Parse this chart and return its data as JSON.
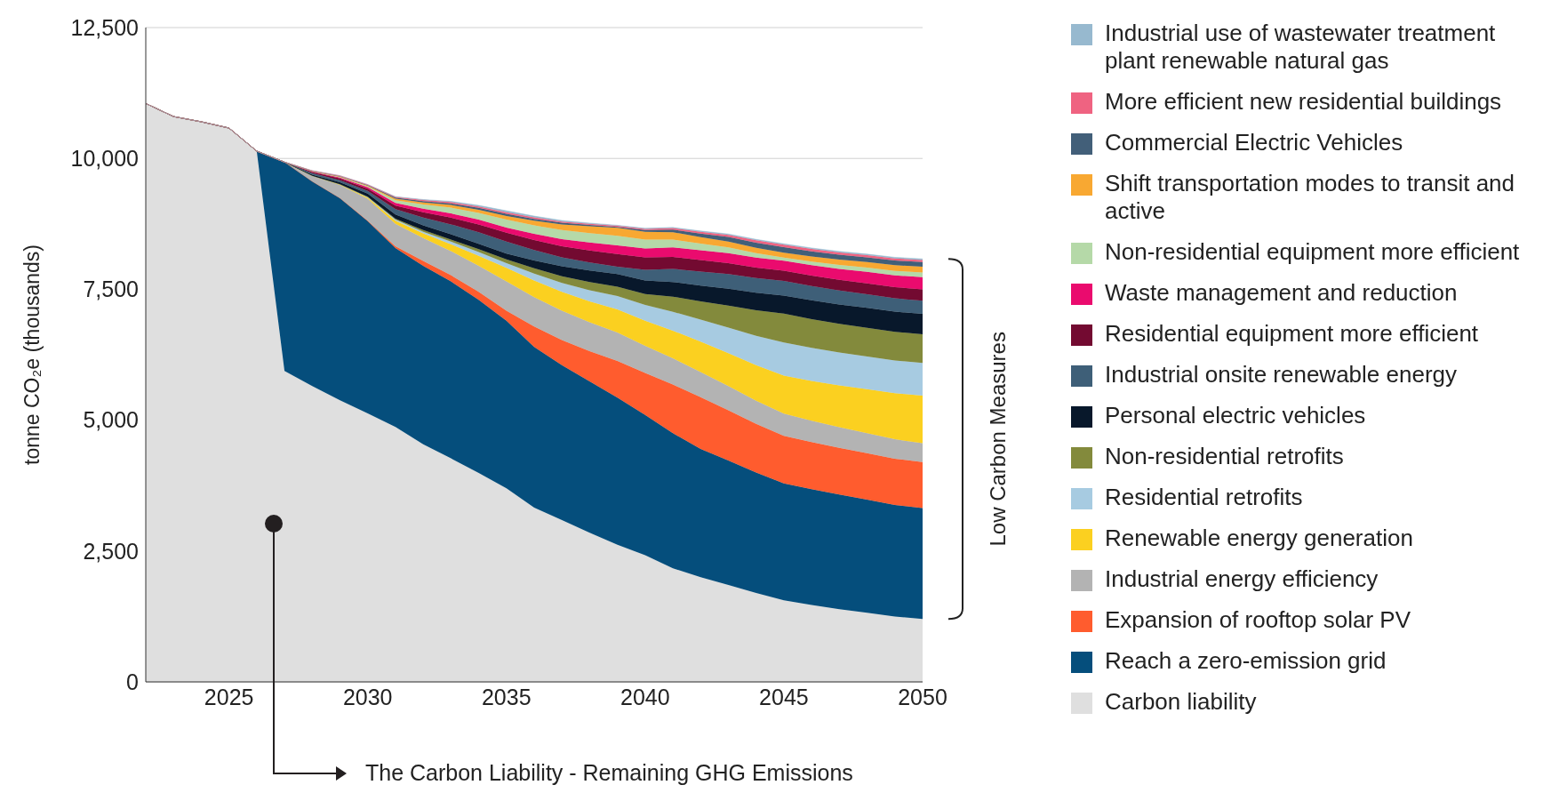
{
  "chart_data": {
    "type": "area",
    "stacked": true,
    "ylabel": "tonne CO₂e (thousands)",
    "x": [
      2022,
      2023,
      2024,
      2025,
      2026,
      2027,
      2028,
      2029,
      2030,
      2031,
      2032,
      2033,
      2034,
      2035,
      2036,
      2037,
      2038,
      2039,
      2040,
      2041,
      2042,
      2043,
      2044,
      2045,
      2046,
      2047,
      2048,
      2049,
      2050
    ],
    "xlim": [
      2022,
      2050
    ],
    "xticks": [
      2025,
      2030,
      2035,
      2040,
      2045,
      2050
    ],
    "ylim": [
      0,
      12500
    ],
    "yticks": [
      0,
      {
        "value": 2500,
        "label": "2,500"
      },
      {
        "value": 5000,
        "label": "5,000"
      },
      {
        "value": 7500,
        "label": "7,500"
      },
      {
        "value": 10000,
        "label": "10,000"
      },
      {
        "value": 12500,
        "label": "12,500"
      }
    ],
    "grid": "y",
    "legend": "right",
    "series": [
      {
        "name": "Carbon liability",
        "color": "#dfdfdf",
        "values": [
          11050,
          10800,
          10700,
          10580,
          10140,
          5940,
          5650,
          5380,
          5130,
          4870,
          4540,
          4270,
          3990,
          3700,
          3330,
          3090,
          2850,
          2620,
          2420,
          2170,
          2000,
          1850,
          1700,
          1560,
          1470,
          1390,
          1320,
          1250,
          1200
        ]
      },
      {
        "name": "Reach a zero-emission grid",
        "color": "#054e7c",
        "values": [
          0,
          0,
          0,
          0,
          0,
          3990,
          3910,
          3860,
          3670,
          3420,
          3410,
          3380,
          3310,
          3200,
          3070,
          2960,
          2890,
          2810,
          2680,
          2580,
          2450,
          2380,
          2300,
          2230,
          2210,
          2190,
          2160,
          2130,
          2120
        ]
      },
      {
        "name": "Expansion of rooftop solar PV",
        "color": "#ff5c2e",
        "values": [
          0,
          0,
          0,
          0,
          0,
          0,
          0,
          5,
          10,
          30,
          90,
          120,
          150,
          190,
          390,
          480,
          580,
          700,
          800,
          930,
          990,
          960,
          930,
          910,
          900,
          890,
          890,
          885,
          880
        ]
      },
      {
        "name": "Industrial energy efficiency",
        "color": "#b3b3b3",
        "values": [
          0,
          0,
          0,
          0,
          0,
          0,
          110,
          250,
          420,
          430,
          440,
          460,
          500,
          560,
          560,
          560,
          550,
          545,
          520,
          500,
          480,
          460,
          440,
          424,
          410,
          395,
          380,
          370,
          360
        ]
      },
      {
        "name": "Renewable energy generation",
        "color": "#fbd020",
        "values": [
          0,
          0,
          0,
          0,
          0,
          0,
          0,
          10,
          20,
          60,
          90,
          130,
          190,
          260,
          320,
          360,
          400,
          440,
          480,
          530,
          580,
          630,
          680,
          727,
          760,
          800,
          840,
          880,
          910
        ]
      },
      {
        "name": "Residential retrofits",
        "color": "#a7cbe1",
        "values": [
          0,
          0,
          0,
          0,
          0,
          0,
          0,
          0,
          10,
          20,
          30,
          50,
          70,
          90,
          130,
          170,
          210,
          254,
          300,
          360,
          420,
          490,
          560,
          633,
          630,
          628,
          627,
          626,
          625
        ]
      },
      {
        "name": "Non-residential retrofits",
        "color": "#838a3c",
        "values": [
          0,
          0,
          0,
          0,
          0,
          0,
          0,
          0,
          10,
          20,
          30,
          40,
          55,
          70,
          100,
          130,
          160,
          181,
          210,
          290,
          350,
          420,
          490,
          550,
          550,
          548,
          547,
          546,
          545
        ]
      },
      {
        "name": "Personal electric vehicles",
        "color": "#08182b",
        "values": [
          0,
          0,
          0,
          0,
          0,
          0,
          20,
          40,
          60,
          80,
          90,
          100,
          105,
          110,
          150,
          190,
          220,
          243,
          260,
          280,
          300,
          320,
          335,
          345,
          360,
          370,
          380,
          385,
          390
        ]
      },
      {
        "name": "Industrial onsite renewable energy",
        "color": "#3e5f78",
        "values": [
          0,
          0,
          0,
          0,
          0,
          0,
          30,
          40,
          50,
          100,
          150,
          190,
          220,
          230,
          200,
          170,
          150,
          140,
          200,
          250,
          270,
          280,
          280,
          280,
          270,
          265,
          260,
          255,
          250
        ]
      },
      {
        "name": "Residential equipment more efficient",
        "color": "#730a31",
        "values": [
          0,
          0,
          0,
          0,
          0,
          0,
          20,
          30,
          40,
          70,
          100,
          130,
          150,
          170,
          190,
          210,
          230,
          242,
          240,
          230,
          220,
          210,
          200,
          195,
          200,
          205,
          210,
          215,
          220
        ]
      },
      {
        "name": "Waste management and reduction",
        "color": "#ea0b6e",
        "values": [
          0,
          0,
          0,
          0,
          0,
          0,
          10,
          20,
          30,
          50,
          70,
          80,
          90,
          100,
          120,
          140,
          155,
          163,
          170,
          180,
          185,
          190,
          192,
          192,
          200,
          210,
          220,
          225,
          230
        ]
      },
      {
        "name": "Non-residential equipment more efficient",
        "color": "#b5d9a8",
        "values": [
          0,
          0,
          0,
          0,
          0,
          0,
          5,
          10,
          20,
          50,
          80,
          110,
          130,
          150,
          160,
          170,
          178,
          183,
          170,
          150,
          130,
          110,
          85,
          61,
          70,
          75,
          80,
          85,
          90
        ]
      },
      {
        "name": "Shift transportation modes to transit and active",
        "color": "#f8a832",
        "values": [
          0,
          0,
          0,
          0,
          0,
          0,
          5,
          10,
          10,
          30,
          40,
          50,
          60,
          70,
          90,
          110,
          130,
          152,
          150,
          140,
          120,
          110,
          100,
          90,
          95,
          100,
          105,
          108,
          110
        ]
      },
      {
        "name": "Commercial Electric Vehicles",
        "color": "#425f79",
        "values": [
          0,
          0,
          0,
          0,
          0,
          0,
          0,
          5,
          10,
          20,
          25,
          30,
          35,
          40,
          35,
          30,
          25,
          20,
          30,
          50,
          70,
          90,
          100,
          107,
          100,
          95,
          92,
          90,
          90
        ]
      },
      {
        "name": "More efficient new residential buildings",
        "color": "#ef6381",
        "values": [
          0,
          0,
          0,
          0,
          0,
          0,
          5,
          10,
          10,
          15,
          20,
          25,
          28,
          30,
          28,
          25,
          22,
          20,
          25,
          30,
          35,
          40,
          44,
          46,
          44,
          42,
          41,
          40,
          40
        ]
      },
      {
        "name": "Industrial use of wastewater treatment plant renewable natural gas",
        "color": "#97b9cf",
        "values": [
          0,
          0,
          0,
          0,
          0,
          0,
          0,
          0,
          0,
          5,
          10,
          15,
          20,
          30,
          25,
          20,
          15,
          10,
          10,
          12,
          14,
          16,
          18,
          20,
          20,
          20,
          20,
          20,
          20
        ]
      }
    ],
    "annotations": [
      "Low Carbon Measures",
      "The Carbon Liability - Remaining GHG Emissions"
    ]
  }
}
